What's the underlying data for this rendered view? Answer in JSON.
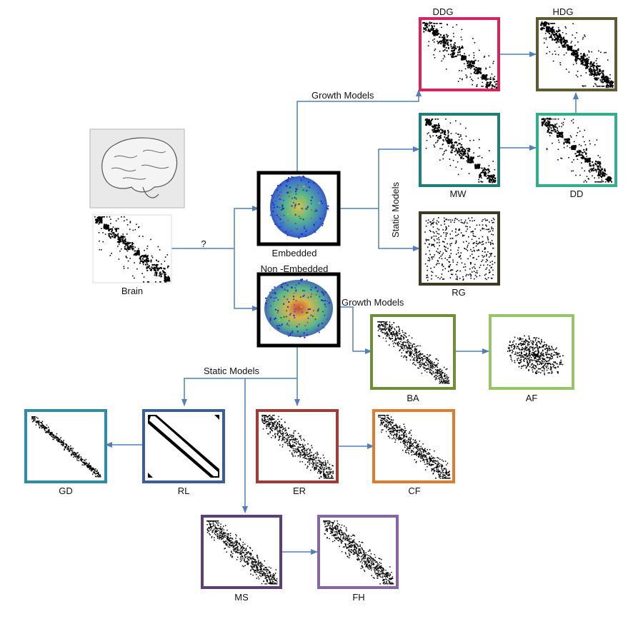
{
  "labels": {
    "brain": "Brain",
    "question": "?",
    "embedded": "Embedded",
    "non_embedded": "Non  -Embedded",
    "growth_models_top": "Growth Models",
    "growth_models_mid": "Growth Models",
    "static_models_embedded": "Static Models",
    "static_models_nonembedded": "Static Models"
  },
  "models": {
    "ddg": {
      "name": "DDG",
      "frame_color": "#d6245c"
    },
    "hdg": {
      "name": "HDG",
      "frame_color": "#5e5a32"
    },
    "mw": {
      "name": "MW",
      "frame_color": "#1f7f77"
    },
    "dd": {
      "name": "DD",
      "frame_color": "#2fb08a"
    },
    "rg": {
      "name": "RG",
      "frame_color": "#3d3a27"
    },
    "ba": {
      "name": "BA",
      "frame_color": "#6f8f34"
    },
    "af": {
      "name": "AF",
      "frame_color": "#98c468"
    },
    "gd": {
      "name": "GD",
      "frame_color": "#2c8ea3"
    },
    "rl": {
      "name": "RL",
      "frame_color": "#3a5d9c"
    },
    "er": {
      "name": "ER",
      "frame_color": "#a33a36"
    },
    "cf": {
      "name": "CF",
      "frame_color": "#e07a2c"
    },
    "ms": {
      "name": "MS",
      "frame_color": "#5a3f7a"
    },
    "fh": {
      "name": "FH",
      "frame_color": "#8565a8"
    }
  },
  "colors": {
    "arrow": "#4f7fbf",
    "network_frame": "#000000",
    "matrix_dot": "#000000"
  }
}
